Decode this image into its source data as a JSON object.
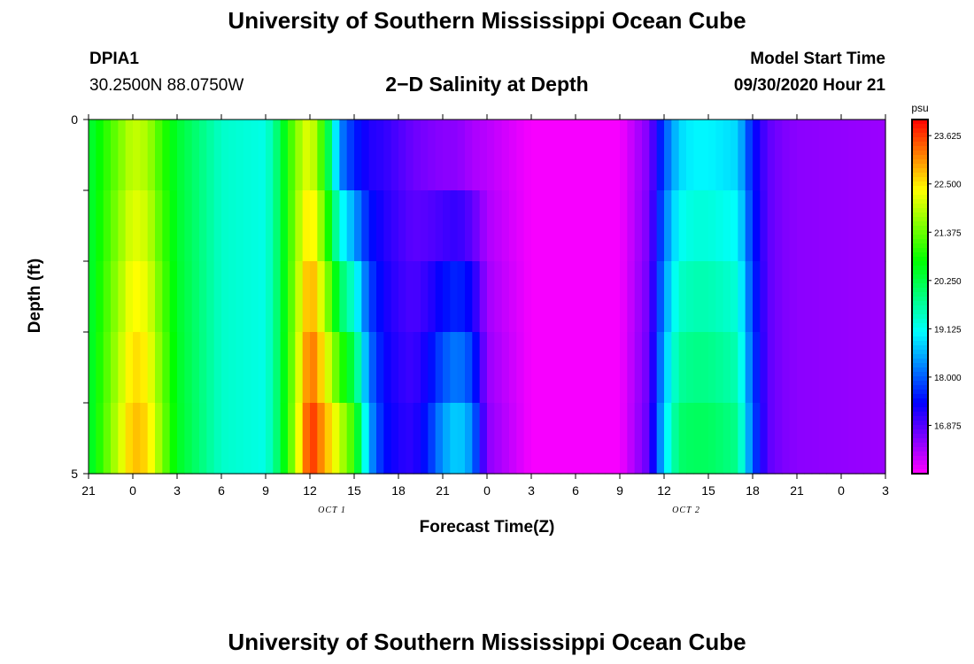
{
  "header": {
    "title": "University of Southern Mississippi Ocean Cube",
    "station": "DPIA1",
    "coordinates": "30.2500N 88.0750W",
    "plot_title": "2−D Salinity at Depth",
    "start_label": "Model Start Time",
    "start_value": "09/30/2020 Hour 21"
  },
  "footer": {
    "title": "University of Southern Mississippi Ocean Cube"
  },
  "chart_data": {
    "type": "heatmap",
    "title": "2−D Salinity at Depth",
    "xlabel": "Forecast Time(Z)",
    "ylabel": "Depth (ft)",
    "x_ticks": [
      "21",
      "0",
      "3",
      "6",
      "9",
      "12",
      "15",
      "18",
      "21",
      "0",
      "3",
      "6",
      "9",
      "12",
      "15",
      "18",
      "21",
      "0",
      "3"
    ],
    "date_labels": [
      {
        "text": "OCT 1",
        "after_tick": 5
      },
      {
        "text": "OCT 2",
        "after_tick": 13
      }
    ],
    "y_tick_labels": [
      "0",
      "5"
    ],
    "ylim": [
      0,
      5
    ],
    "x_hours": [
      0,
      54
    ],
    "colorbar": {
      "unit": "psu",
      "range": [
        15.75,
        24.0
      ],
      "tick_values": [
        23.625,
        22.5,
        21.375,
        20.25,
        19.125,
        18.0,
        16.875
      ],
      "tick_labels": [
        "23.625",
        "22.500",
        "21.375",
        "20.250",
        "19.125",
        "18.000",
        "16.875"
      ]
    },
    "profile_hours": [
      0,
      3,
      4,
      5,
      6,
      9,
      12,
      13,
      14,
      15,
      16,
      17,
      18,
      19,
      20,
      21,
      22,
      23,
      24,
      25,
      26,
      27,
      30,
      33,
      36,
      38,
      39,
      40,
      41,
      42,
      44,
      45,
      46,
      47,
      48,
      54
    ],
    "profiles": [
      {
        "name": "surface",
        "values": [
          20.3,
          22.0,
          21.8,
          21.0,
          20.4,
          19.4,
          19.2,
          20.2,
          21.5,
          22.3,
          20.8,
          18.3,
          17.6,
          17.2,
          17.1,
          16.9,
          16.7,
          16.6,
          16.5,
          16.5,
          16.3,
          16.2,
          15.8,
          15.8,
          15.8,
          16.6,
          17.9,
          18.8,
          19.0,
          19.0,
          18.8,
          17.5,
          16.8,
          16.6,
          16.5,
          16.4
        ]
      },
      {
        "name": "bottom",
        "values": [
          20.3,
          22.8,
          22.6,
          21.5,
          20.5,
          19.4,
          19.2,
          20.2,
          21.8,
          23.8,
          22.9,
          22.0,
          21.0,
          18.5,
          17.5,
          17.2,
          17.1,
          17.6,
          18.4,
          18.8,
          18.3,
          16.5,
          15.8,
          15.8,
          15.8,
          16.8,
          18.8,
          20.0,
          20.1,
          20.1,
          19.8,
          18.0,
          16.8,
          16.6,
          16.5,
          16.4
        ]
      }
    ]
  }
}
